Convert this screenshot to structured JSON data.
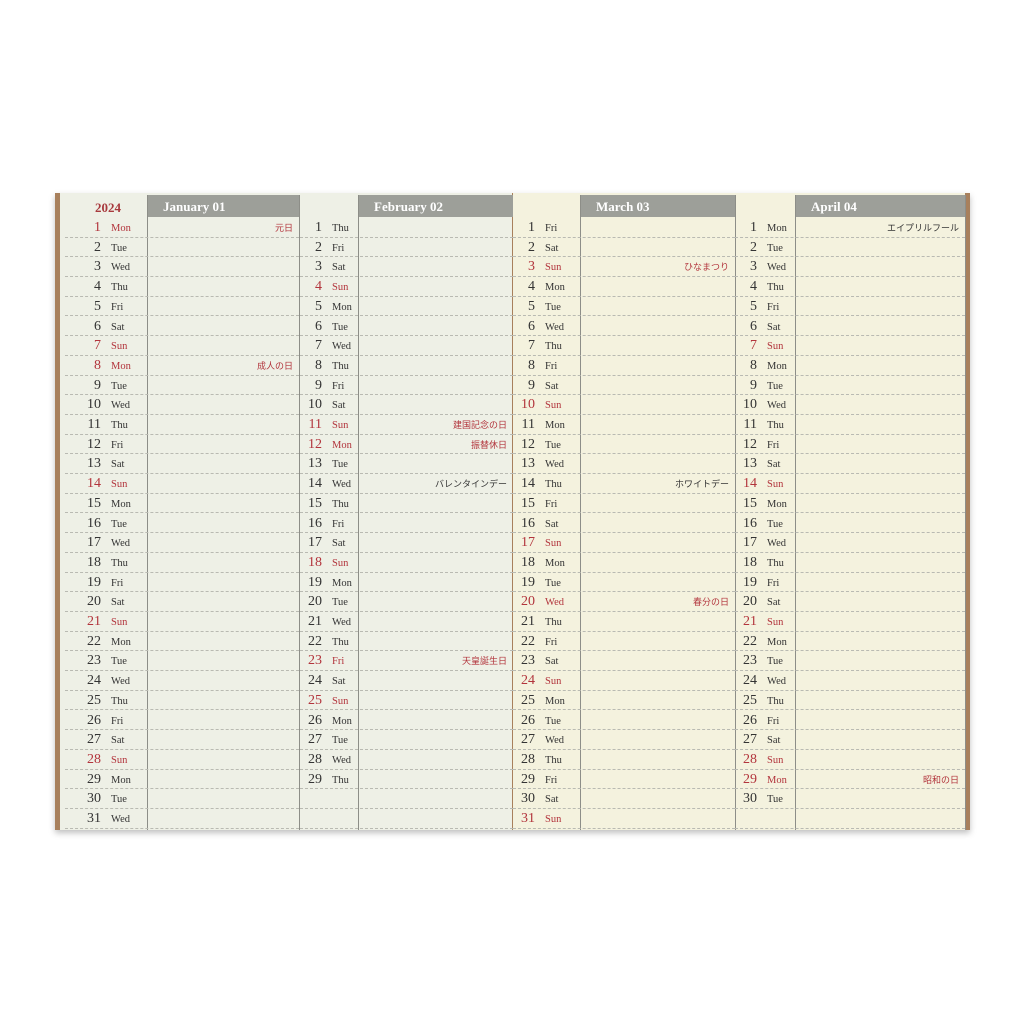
{
  "year": "2024",
  "months": [
    {
      "header": "January 01",
      "days": [
        [
          "1",
          "Mon",
          1,
          "元日"
        ],
        [
          "2",
          "Tue"
        ],
        [
          "3",
          "Wed"
        ],
        [
          "4",
          "Thu"
        ],
        [
          "5",
          "Fri"
        ],
        [
          "6",
          "Sat"
        ],
        [
          "7",
          "Sun",
          1
        ],
        [
          "8",
          "Mon",
          1,
          "成人の日"
        ],
        [
          "9",
          "Tue"
        ],
        [
          "10",
          "Wed"
        ],
        [
          "11",
          "Thu"
        ],
        [
          "12",
          "Fri"
        ],
        [
          "13",
          "Sat"
        ],
        [
          "14",
          "Sun",
          1
        ],
        [
          "15",
          "Mon"
        ],
        [
          "16",
          "Tue"
        ],
        [
          "17",
          "Wed"
        ],
        [
          "18",
          "Thu"
        ],
        [
          "19",
          "Fri"
        ],
        [
          "20",
          "Sat"
        ],
        [
          "21",
          "Sun",
          1
        ],
        [
          "22",
          "Mon"
        ],
        [
          "23",
          "Tue"
        ],
        [
          "24",
          "Wed"
        ],
        [
          "25",
          "Thu"
        ],
        [
          "26",
          "Fri"
        ],
        [
          "27",
          "Sat"
        ],
        [
          "28",
          "Sun",
          1
        ],
        [
          "29",
          "Mon"
        ],
        [
          "30",
          "Tue"
        ],
        [
          "31",
          "Wed"
        ]
      ]
    },
    {
      "header": "February 02",
      "days": [
        [
          "1",
          "Thu"
        ],
        [
          "2",
          "Fri"
        ],
        [
          "3",
          "Sat"
        ],
        [
          "4",
          "Sun",
          1
        ],
        [
          "5",
          "Mon"
        ],
        [
          "6",
          "Tue"
        ],
        [
          "7",
          "Wed"
        ],
        [
          "8",
          "Thu"
        ],
        [
          "9",
          "Fri"
        ],
        [
          "10",
          "Sat"
        ],
        [
          "11",
          "Sun",
          1,
          "建国記念の日"
        ],
        [
          "12",
          "Mon",
          1,
          "振替休日"
        ],
        [
          "13",
          "Tue"
        ],
        [
          "14",
          "Wed",
          0,
          "バレンタインデー"
        ],
        [
          "15",
          "Thu"
        ],
        [
          "16",
          "Fri"
        ],
        [
          "17",
          "Sat"
        ],
        [
          "18",
          "Sun",
          1
        ],
        [
          "19",
          "Mon"
        ],
        [
          "20",
          "Tue"
        ],
        [
          "21",
          "Wed"
        ],
        [
          "22",
          "Thu"
        ],
        [
          "23",
          "Fri",
          1,
          "天皇誕生日"
        ],
        [
          "24",
          "Sat"
        ],
        [
          "25",
          "Sun",
          1
        ],
        [
          "26",
          "Mon"
        ],
        [
          "27",
          "Tue"
        ],
        [
          "28",
          "Wed"
        ],
        [
          "29",
          "Thu"
        ]
      ]
    },
    {
      "header": "March 03",
      "days": [
        [
          "1",
          "Fri"
        ],
        [
          "2",
          "Sat"
        ],
        [
          "3",
          "Sun",
          1,
          "ひなまつり"
        ],
        [
          "4",
          "Mon"
        ],
        [
          "5",
          "Tue"
        ],
        [
          "6",
          "Wed"
        ],
        [
          "7",
          "Thu"
        ],
        [
          "8",
          "Fri"
        ],
        [
          "9",
          "Sat"
        ],
        [
          "10",
          "Sun",
          1
        ],
        [
          "11",
          "Mon"
        ],
        [
          "12",
          "Tue"
        ],
        [
          "13",
          "Wed"
        ],
        [
          "14",
          "Thu",
          0,
          "ホワイトデー"
        ],
        [
          "15",
          "Fri"
        ],
        [
          "16",
          "Sat"
        ],
        [
          "17",
          "Sun",
          1
        ],
        [
          "18",
          "Mon"
        ],
        [
          "19",
          "Tue"
        ],
        [
          "20",
          "Wed",
          1,
          "春分の日"
        ],
        [
          "21",
          "Thu"
        ],
        [
          "22",
          "Fri"
        ],
        [
          "23",
          "Sat"
        ],
        [
          "24",
          "Sun",
          1
        ],
        [
          "25",
          "Mon"
        ],
        [
          "26",
          "Tue"
        ],
        [
          "27",
          "Wed"
        ],
        [
          "28",
          "Thu"
        ],
        [
          "29",
          "Fri"
        ],
        [
          "30",
          "Sat"
        ],
        [
          "31",
          "Sun",
          1
        ]
      ]
    },
    {
      "header": "April 04",
      "days": [
        [
          "1",
          "Mon",
          0,
          "エイプリルフール"
        ],
        [
          "2",
          "Tue"
        ],
        [
          "3",
          "Wed"
        ],
        [
          "4",
          "Thu"
        ],
        [
          "5",
          "Fri"
        ],
        [
          "6",
          "Sat"
        ],
        [
          "7",
          "Sun",
          1
        ],
        [
          "8",
          "Mon"
        ],
        [
          "9",
          "Tue"
        ],
        [
          "10",
          "Wed"
        ],
        [
          "11",
          "Thu"
        ],
        [
          "12",
          "Fri"
        ],
        [
          "13",
          "Sat"
        ],
        [
          "14",
          "Sun",
          1
        ],
        [
          "15",
          "Mon"
        ],
        [
          "16",
          "Tue"
        ],
        [
          "17",
          "Wed"
        ],
        [
          "18",
          "Thu"
        ],
        [
          "19",
          "Fri"
        ],
        [
          "20",
          "Sat"
        ],
        [
          "21",
          "Sun",
          1
        ],
        [
          "22",
          "Mon"
        ],
        [
          "23",
          "Tue"
        ],
        [
          "24",
          "Wed"
        ],
        [
          "25",
          "Thu"
        ],
        [
          "26",
          "Fri"
        ],
        [
          "27",
          "Sat"
        ],
        [
          "28",
          "Sun",
          1
        ],
        [
          "29",
          "Mon",
          1,
          "昭和の日"
        ],
        [
          "30",
          "Tue"
        ]
      ]
    }
  ],
  "colors": {
    "header_gray": "#9d9f99",
    "holiday_red": "#b2343c",
    "cover_brown": "#a8805c"
  }
}
